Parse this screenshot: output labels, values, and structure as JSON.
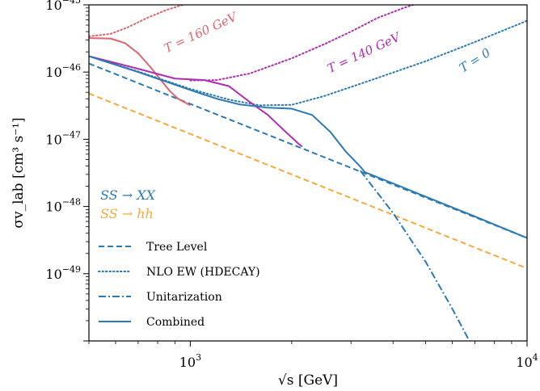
{
  "chart_data": {
    "type": "line",
    "x_scale": "log",
    "y_scale": "log",
    "xlim": [
      500,
      10000
    ],
    "ylim": [
      1e-50,
      1e-45
    ],
    "xlabel": "√s [GeV]",
    "ylabel": "σv_lab [cm³ s⁻¹]",
    "x_tick_labels": [
      {
        "value": 1000,
        "label": "10",
        "exp": "3"
      },
      {
        "value": 10000,
        "label": "10",
        "exp": "4"
      }
    ],
    "y_tick_labels": [
      {
        "value": 1e-45,
        "label": "10",
        "exp": "−45"
      },
      {
        "value": 1e-46,
        "label": "10",
        "exp": "−46"
      },
      {
        "value": 1e-47,
        "label": "10",
        "exp": "−47"
      },
      {
        "value": 1e-48,
        "label": "10",
        "exp": "−48"
      },
      {
        "value": 1e-49,
        "label": "10",
        "exp": "−49"
      }
    ],
    "colors": {
      "blue": "#2a7ab5",
      "orange": "#f7a93c",
      "red": "#e0646a",
      "purple": "#b02cb0"
    },
    "series": [
      {
        "name": "SS → hh tree level",
        "color": "#f7a93c",
        "style": "dashed",
        "x": [
          500,
          10000
        ],
        "y": [
          4.8e-47,
          1.2e-49
        ]
      },
      {
        "name": "Tree Level",
        "color": "#2a7ab5",
        "style": "dashed",
        "x": [
          500,
          10000
        ],
        "y": [
          1.34e-46,
          3.4e-49
        ]
      },
      {
        "name": "NLO EW T = 0",
        "color": "#2a7ab5",
        "style": "dotted",
        "x": [
          500,
          700,
          1000,
          1300,
          1600,
          2000,
          2500,
          3500,
          5000,
          7000,
          10000
        ],
        "y": [
          1.72e-46,
          1.02e-46,
          5.6e-47,
          3.9e-47,
          3.2e-47,
          3.25e-47,
          4.4e-47,
          7.8e-47,
          1.45e-46,
          2.8e-46,
          5.8e-46
        ]
      },
      {
        "name": "NLO EW T = 140 GeV",
        "color": "#b02cb0",
        "style": "dotted",
        "x": [
          1000,
          1200,
          1500,
          2000,
          2500,
          3000,
          3600,
          4300,
          5000
        ],
        "y": [
          7.5e-47,
          7.6e-47,
          9.5e-47,
          1.6e-46,
          2.6e-46,
          4e-46,
          6.4e-46,
          9e-46,
          1.15e-45
        ]
      },
      {
        "name": "NLO EW T = 160 GeV",
        "color": "#e0646a",
        "style": "dotted",
        "x": [
          500,
          580,
          650,
          750,
          850,
          1000
        ],
        "y": [
          3.4e-46,
          3.7e-46,
          4.6e-46,
          6.5e-46,
          8.4e-46,
          1.08e-45
        ]
      },
      {
        "name": "Unitarization",
        "color": "#2a7ab5",
        "style": "dashdot",
        "x": [
          3200,
          4000,
          5000,
          6000,
          7000
        ],
        "y": [
          3.4e-48,
          8e-49,
          1.5e-49,
          3e-50,
          7e-51
        ]
      },
      {
        "name": "Combined T = 160 GeV",
        "color": "#e0646a",
        "style": "solid",
        "x": [
          500,
          580,
          640,
          700,
          760,
          820,
          870,
          920,
          1000
        ],
        "y": [
          3.2e-46,
          3.15e-46,
          2.7e-46,
          1.9e-46,
          1.2e-46,
          7.5e-47,
          5.2e-47,
          4e-47,
          3.2e-47
        ]
      },
      {
        "name": "Combined T = 140 GeV",
        "color": "#b02cb0",
        "style": "solid",
        "x": [
          500,
          700,
          900,
          1100,
          1300,
          1500,
          1700,
          1900,
          2100,
          2150
        ],
        "y": [
          1.72e-46,
          1.12e-46,
          8e-47,
          7.6e-47,
          6.2e-47,
          3.6e-47,
          2.3e-47,
          1.35e-47,
          8.5e-48,
          7.8e-48
        ]
      },
      {
        "name": "Combined",
        "color": "#2a7ab5",
        "style": "solid",
        "x": [
          500,
          700,
          900,
          1000,
          1200,
          1400,
          1700,
          2000,
          2300,
          2600,
          2900,
          3200,
          3300,
          4000,
          5000,
          7000,
          10000
        ],
        "y": [
          1.72e-46,
          1e-46,
          6.5e-47,
          5.4e-47,
          4e-47,
          3.3e-47,
          2.95e-47,
          2.85e-47,
          2.3e-47,
          1.3e-47,
          6.5e-48,
          3.9e-48,
          3.24e-48,
          2.2e-48,
          1.4e-48,
          7.1e-49,
          3.4e-49
        ]
      }
    ],
    "annotations": [
      {
        "text": "T = 160 GeV",
        "color": "#e0646a"
      },
      {
        "text": "T = 140 GeV",
        "color": "#b02cb0"
      },
      {
        "text": "T = 0",
        "color": "#2a7ab5"
      },
      {
        "text": "SS → XX",
        "color": "#2a7ab5"
      },
      {
        "text": "SS → hh",
        "color": "#f7a93c"
      }
    ],
    "legend": {
      "placement": "lower-left",
      "entries": [
        {
          "label": "Tree Level",
          "style": "dashed",
          "color": "#2a7ab5"
        },
        {
          "label": "NLO EW (HDECAY)",
          "style": "dotted",
          "color": "#2a7ab5"
        },
        {
          "label": "Unitarization",
          "style": "dashdot",
          "color": "#2a7ab5"
        },
        {
          "label": "Combined",
          "style": "solid",
          "color": "#2a7ab5"
        }
      ]
    }
  }
}
